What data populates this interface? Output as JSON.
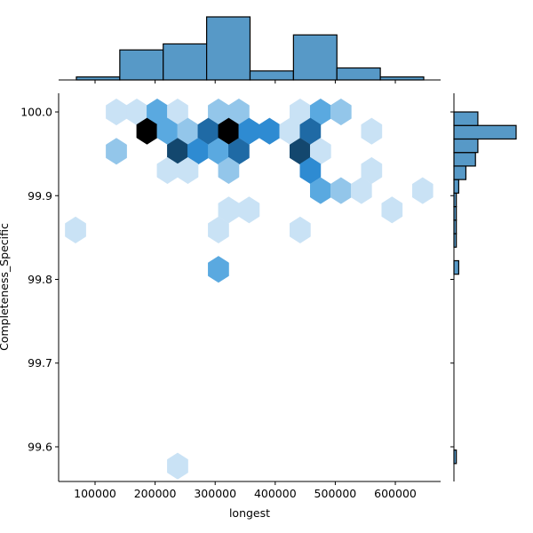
{
  "chart_data": {
    "type": "hexbin-jointplot",
    "xlabel": "longest",
    "ylabel": "Completeness_Specific",
    "xlim": [
      39350,
      675400
    ],
    "ylim": [
      99.5586,
      100.0223
    ],
    "xticks": [
      100000,
      200000,
      300000,
      400000,
      500000,
      600000
    ],
    "yticks": [
      "99.6",
      "99.7",
      "99.8",
      "99.9",
      "100.0"
    ],
    "grid": false,
    "colors": {
      "bar": "#5799c7",
      "hex_levels": [
        "#c9e2f5",
        "#93c6ea",
        "#5aa9e0",
        "#2e8bd2",
        "#1f6aa5",
        "#13476e",
        "#000000"
      ]
    },
    "hexbins": [
      {
        "x": 135500,
        "y": 100.0,
        "c": 1
      },
      {
        "x": 169500,
        "y": 100.0,
        "c": 1
      },
      {
        "x": 203500,
        "y": 100.0,
        "c": 3
      },
      {
        "x": 237500,
        "y": 100.0,
        "c": 1
      },
      {
        "x": 305500,
        "y": 100.0,
        "c": 2
      },
      {
        "x": 339500,
        "y": 100.0,
        "c": 2
      },
      {
        "x": 441500,
        "y": 100.0,
        "c": 1
      },
      {
        "x": 475500,
        "y": 100.0,
        "c": 3
      },
      {
        "x": 509500,
        "y": 100.0,
        "c": 2
      },
      {
        "x": 186500,
        "y": 99.977,
        "c": 7
      },
      {
        "x": 220500,
        "y": 99.977,
        "c": 3
      },
      {
        "x": 254500,
        "y": 99.977,
        "c": 2
      },
      {
        "x": 288500,
        "y": 99.977,
        "c": 5
      },
      {
        "x": 322500,
        "y": 99.977,
        "c": 7
      },
      {
        "x": 356500,
        "y": 99.977,
        "c": 4
      },
      {
        "x": 390500,
        "y": 99.977,
        "c": 4
      },
      {
        "x": 424500,
        "y": 99.977,
        "c": 1
      },
      {
        "x": 458500,
        "y": 99.977,
        "c": 5
      },
      {
        "x": 560500,
        "y": 99.977,
        "c": 1
      },
      {
        "x": 135500,
        "y": 99.953,
        "c": 2
      },
      {
        "x": 237500,
        "y": 99.953,
        "c": 6
      },
      {
        "x": 271500,
        "y": 99.953,
        "c": 4
      },
      {
        "x": 305500,
        "y": 99.953,
        "c": 3
      },
      {
        "x": 339500,
        "y": 99.953,
        "c": 5
      },
      {
        "x": 441500,
        "y": 99.953,
        "c": 6
      },
      {
        "x": 475500,
        "y": 99.953,
        "c": 1
      },
      {
        "x": 220500,
        "y": 99.93,
        "c": 1
      },
      {
        "x": 254500,
        "y": 99.93,
        "c": 1
      },
      {
        "x": 322500,
        "y": 99.93,
        "c": 2
      },
      {
        "x": 458500,
        "y": 99.93,
        "c": 4
      },
      {
        "x": 560500,
        "y": 99.93,
        "c": 1
      },
      {
        "x": 475500,
        "y": 99.906,
        "c": 3
      },
      {
        "x": 509500,
        "y": 99.906,
        "c": 2
      },
      {
        "x": 543500,
        "y": 99.906,
        "c": 1
      },
      {
        "x": 645500,
        "y": 99.906,
        "c": 1
      },
      {
        "x": 322500,
        "y": 99.883,
        "c": 1
      },
      {
        "x": 356500,
        "y": 99.883,
        "c": 1
      },
      {
        "x": 594500,
        "y": 99.883,
        "c": 1
      },
      {
        "x": 67500,
        "y": 99.859,
        "c": 1
      },
      {
        "x": 305500,
        "y": 99.859,
        "c": 1
      },
      {
        "x": 441500,
        "y": 99.859,
        "c": 1
      },
      {
        "x": 305500,
        "y": 99.812,
        "c": 3
      },
      {
        "x": 237500,
        "y": 99.577,
        "c": 1
      }
    ],
    "x_hist": {
      "edges": [
        68900,
        141200,
        213500,
        285800,
        358100,
        430400,
        502700,
        575000,
        647300
      ],
      "counts": [
        1,
        10,
        12,
        21,
        3,
        15,
        4,
        1
      ]
    },
    "y_hist": {
      "min": 99.58,
      "max": 100.0,
      "bins": 26,
      "counts": [
        1,
        0,
        0,
        0,
        0,
        0,
        0,
        0,
        0,
        0,
        0,
        0,
        0,
        0,
        2,
        0,
        1,
        1,
        1,
        1,
        2,
        5,
        9,
        10,
        26,
        10
      ]
    }
  }
}
